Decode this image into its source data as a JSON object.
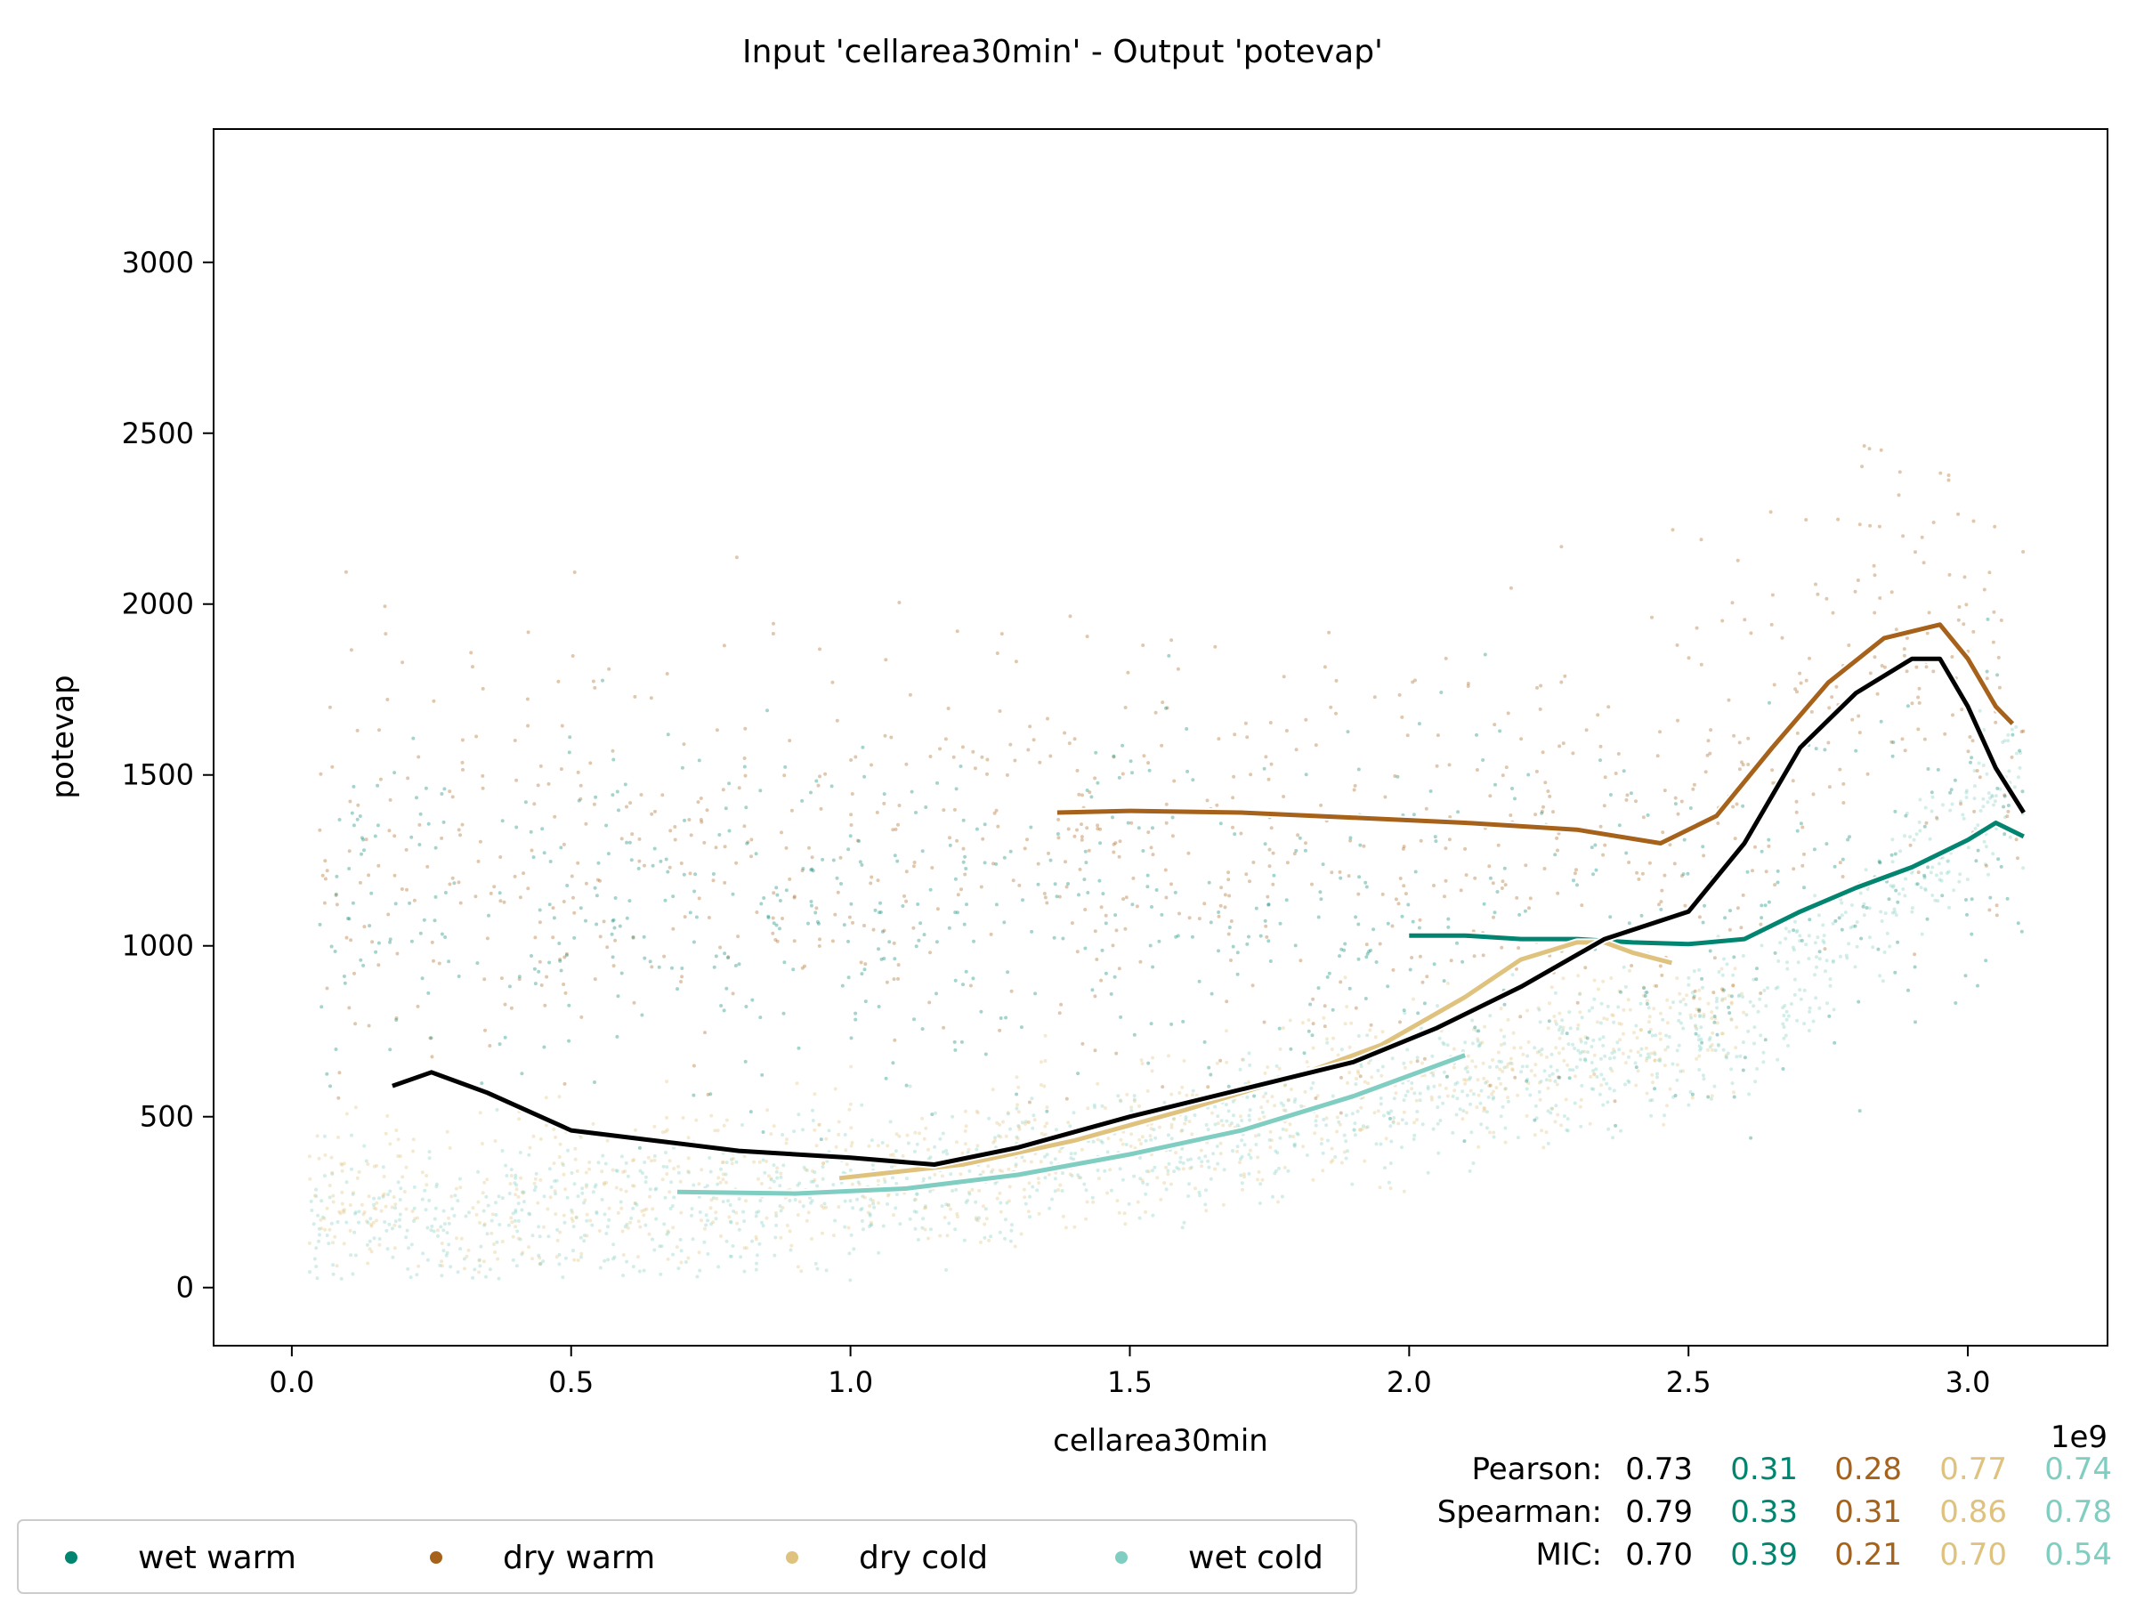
{
  "chart_data": {
    "type": "scatter",
    "title": "Input 'cellarea30min' - Output 'potevap'",
    "xlabel": "cellarea30min",
    "ylabel": "potevap",
    "x_multiplier_label": "1e9",
    "xlim": [
      -0.14,
      3.25
    ],
    "ylim": [
      -170,
      3390
    ],
    "x_ticks": [
      0.0,
      0.5,
      1.0,
      1.5,
      2.0,
      2.5,
      3.0
    ],
    "x_tick_labels": [
      "0.0",
      "0.5",
      "1.0",
      "1.5",
      "2.0",
      "2.5",
      "3.0"
    ],
    "y_ticks": [
      0,
      500,
      1000,
      1500,
      2000,
      2500,
      3000
    ],
    "y_tick_labels": [
      "0",
      "500",
      "1000",
      "1500",
      "2000",
      "2500",
      "3000"
    ],
    "grid": false,
    "legend_position": "bottom-left",
    "colors": {
      "overall": "#000000",
      "wet_warm": "#018571",
      "dry_warm": "#a6611a",
      "dry_cold": "#dfc27d",
      "wet_cold": "#80cdc1"
    },
    "series": [
      {
        "name": "wet warm",
        "color": "#018571",
        "trend_x": [
          2.0,
          2.1,
          2.2,
          2.3,
          2.4,
          2.5,
          2.6,
          2.7,
          2.8,
          2.9,
          3.0,
          3.05,
          3.1
        ],
        "trend_y": [
          1030,
          1030,
          1020,
          1020,
          1010,
          1005,
          1020,
          1100,
          1170,
          1230,
          1310,
          1360,
          1320
        ]
      },
      {
        "name": "dry warm",
        "color": "#a6611a",
        "trend_x": [
          1.37,
          1.5,
          1.7,
          1.9,
          2.1,
          2.3,
          2.45,
          2.55,
          2.65,
          2.75,
          2.85,
          2.95,
          3.0,
          3.05,
          3.08
        ],
        "trend_y": [
          1390,
          1395,
          1390,
          1375,
          1360,
          1340,
          1300,
          1380,
          1580,
          1770,
          1900,
          1940,
          1840,
          1700,
          1650
        ]
      },
      {
        "name": "dry cold",
        "color": "#dfc27d",
        "trend_x": [
          0.98,
          1.2,
          1.4,
          1.6,
          1.8,
          1.95,
          2.1,
          2.2,
          2.3,
          2.35,
          2.4,
          2.47
        ],
        "trend_y": [
          320,
          360,
          430,
          520,
          620,
          710,
          850,
          960,
          1010,
          1010,
          980,
          950
        ]
      },
      {
        "name": "wet cold",
        "color": "#80cdc1",
        "trend_x": [
          0.69,
          0.9,
          1.1,
          1.3,
          1.5,
          1.7,
          1.9,
          2.0,
          2.1
        ],
        "trend_y": [
          280,
          275,
          290,
          330,
          390,
          460,
          560,
          620,
          680
        ]
      }
    ],
    "overall_trend": {
      "color": "#000000",
      "x": [
        0.18,
        0.25,
        0.35,
        0.5,
        0.65,
        0.8,
        1.0,
        1.15,
        1.3,
        1.5,
        1.7,
        1.9,
        2.05,
        2.2,
        2.35,
        2.5,
        2.6,
        2.7,
        2.8,
        2.9,
        2.95,
        3.0,
        3.05,
        3.1
      ],
      "y": [
        590,
        630,
        570,
        460,
        430,
        400,
        380,
        360,
        410,
        500,
        580,
        660,
        760,
        880,
        1020,
        1100,
        1300,
        1580,
        1740,
        1840,
        1840,
        1700,
        1520,
        1390
      ]
    },
    "stats": {
      "rows": [
        {
          "label": "Pearson:",
          "overall": "0.73",
          "values": [
            "0.31",
            "0.28",
            "0.77",
            "0.74"
          ]
        },
        {
          "label": "Spearman:",
          "overall": "0.79",
          "values": [
            "0.33",
            "0.31",
            "0.86",
            "0.78"
          ]
        },
        {
          "label": "MIC:",
          "overall": "0.70",
          "values": [
            "0.39",
            "0.21",
            "0.70",
            "0.54"
          ]
        }
      ]
    }
  }
}
